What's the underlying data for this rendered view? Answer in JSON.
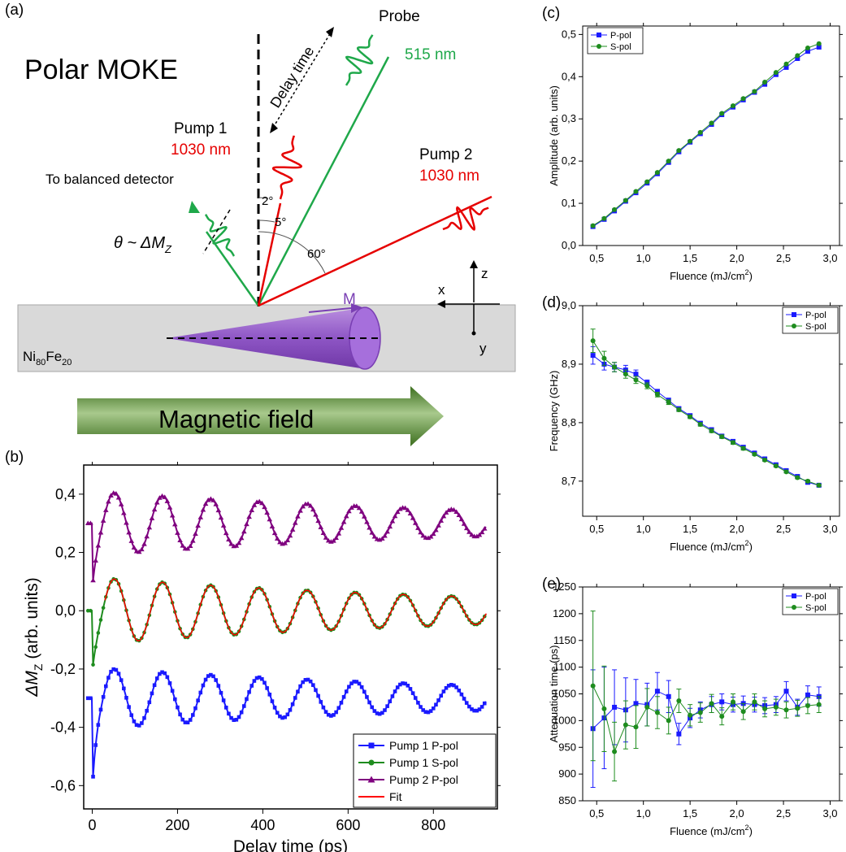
{
  "panel_a": {
    "label": "(a)",
    "title": "Polar MOKE",
    "probe_label": "Probe",
    "probe_wavelength": "515 nm",
    "pump1_label": "Pump 1",
    "pump1_wavelength": "1030 nm",
    "pump2_label": "Pump 2",
    "pump2_wavelength": "1030 nm",
    "delay_label": "Delay time",
    "detector_label": "To balanced detector",
    "theta_label": "θ ~ ΔM",
    "theta_sub": "Z",
    "angle_2": "2°",
    "angle_5": "5°",
    "angle_60": "60°",
    "magnetization_label": "M",
    "axis_z": "z",
    "axis_x": "x",
    "axis_y": "y",
    "sample_main": "Ni",
    "sample_sub1": "80",
    "sample_mid": "Fe",
    "sample_sub2": "20",
    "field_label": "Magnetic field",
    "colors": {
      "probe": "#1fa84a",
      "pump": "#e60000",
      "cone": "#9b59c9",
      "arrow": "#5a8a2e"
    }
  },
  "chart_data": [
    {
      "id": "b",
      "panel_label": "(b)",
      "type": "line",
      "xlabel": "Delay time (ps)",
      "ylabel_main": "ΔM",
      "ylabel_sub": "Z",
      "ylabel_rest": " (arb. units)",
      "xlim": [
        -20,
        950
      ],
      "ylim": [
        -0.68,
        0.5
      ],
      "xticks": [
        "0",
        "200",
        "400",
        "600",
        "800"
      ],
      "xtick_values": [
        0,
        200,
        400,
        600,
        800
      ],
      "yticks": [
        "-0,6",
        "-0,4",
        "-0,2",
        "0,0",
        "0,2",
        "0,4"
      ],
      "ytick_values": [
        -0.6,
        -0.4,
        -0.2,
        0.0,
        0.2,
        0.4
      ],
      "legend_position": "bottom-right",
      "series": [
        {
          "name": "Pump 1 P-pol",
          "color": "#1a1aff",
          "marker": "square",
          "offset": -0.3,
          "amp": 0.105,
          "period": 113,
          "phase": 52,
          "tau": 1020,
          "peak": 0.11
        },
        {
          "name": "Pump 1 S-pol",
          "color": "#1e8c1e",
          "marker": "circle",
          "offset": 0.0,
          "amp": 0.115,
          "period": 113,
          "phase": 52,
          "tau": 1020,
          "peak": 0.0
        },
        {
          "name": "Pump 2 P-pol",
          "color": "#7f007f",
          "marker": "triangle",
          "offset": 0.3,
          "amp": 0.11,
          "period": 113,
          "phase": 52,
          "tau": 1020,
          "peak": -0.06
        },
        {
          "name": "Fit",
          "color": "#ff0000",
          "marker": "line"
        }
      ]
    },
    {
      "id": "c",
      "panel_label": "(c)",
      "type": "line",
      "xlabel": "Fluence (mJ/cm",
      "xlabel_sup": "2",
      "xlabel_end": ")",
      "ylabel": "Amplitude (arb. units)",
      "xlim": [
        0.35,
        3.1
      ],
      "ylim": [
        0.0,
        0.52
      ],
      "xticks": [
        "0,5",
        "1,0",
        "1,5",
        "2,0",
        "2,5",
        "3,0"
      ],
      "xtick_values": [
        0.5,
        1.0,
        1.5,
        2.0,
        2.5,
        3.0
      ],
      "yticks": [
        "0,0",
        "0,1",
        "0,2",
        "0,3",
        "0,4",
        "0,5"
      ],
      "ytick_values": [
        0.0,
        0.1,
        0.2,
        0.3,
        0.4,
        0.5
      ],
      "legend_position": "top-left",
      "x": [
        0.46,
        0.58,
        0.69,
        0.81,
        0.92,
        1.04,
        1.15,
        1.27,
        1.38,
        1.5,
        1.61,
        1.73,
        1.84,
        1.96,
        2.07,
        2.19,
        2.3,
        2.42,
        2.53,
        2.65,
        2.76,
        2.88
      ],
      "series": [
        {
          "name": "P-pol",
          "color": "#1a1aff",
          "marker": "square",
          "values": [
            0.045,
            0.062,
            0.082,
            0.105,
            0.125,
            0.148,
            0.17,
            0.197,
            0.222,
            0.245,
            0.265,
            0.287,
            0.31,
            0.328,
            0.345,
            0.363,
            0.382,
            0.405,
            0.422,
            0.443,
            0.46,
            0.47
          ]
        },
        {
          "name": "S-pol",
          "color": "#1e8c1e",
          "marker": "circle",
          "values": [
            0.047,
            0.064,
            0.085,
            0.107,
            0.128,
            0.151,
            0.173,
            0.2,
            0.225,
            0.247,
            0.268,
            0.29,
            0.313,
            0.331,
            0.348,
            0.365,
            0.387,
            0.41,
            0.43,
            0.45,
            0.468,
            0.478
          ]
        }
      ]
    },
    {
      "id": "d",
      "panel_label": "(d)",
      "type": "line",
      "xlabel": "Fluence (mJ/cm",
      "xlabel_sup": "2",
      "xlabel_end": ")",
      "ylabel": "Frequency (GHz)",
      "xlim": [
        0.35,
        3.1
      ],
      "ylim": [
        8.64,
        9.0
      ],
      "xticks": [
        "0,5",
        "1,0",
        "1,5",
        "2,0",
        "2,5",
        "3,0"
      ],
      "xtick_values": [
        0.5,
        1.0,
        1.5,
        2.0,
        2.5,
        3.0
      ],
      "yticks": [
        "8,7",
        "8,8",
        "8,9",
        "9,0"
      ],
      "ytick_values": [
        8.7,
        8.8,
        8.9,
        9.0
      ],
      "legend_position": "top-right",
      "x": [
        0.46,
        0.58,
        0.69,
        0.81,
        0.92,
        1.04,
        1.15,
        1.27,
        1.38,
        1.5,
        1.61,
        1.73,
        1.84,
        1.96,
        2.07,
        2.19,
        2.3,
        2.42,
        2.53,
        2.65,
        2.76,
        2.88
      ],
      "series": [
        {
          "name": "P-pol",
          "color": "#1a1aff",
          "marker": "square",
          "values": [
            8.915,
            8.9,
            8.895,
            8.89,
            8.883,
            8.868,
            8.853,
            8.838,
            8.824,
            8.812,
            8.799,
            8.788,
            8.777,
            8.768,
            8.758,
            8.748,
            8.738,
            8.728,
            8.718,
            8.708,
            8.698,
            8.693
          ],
          "errors": [
            0.015,
            0.01,
            0.008,
            0.008,
            0.007,
            0.005,
            0.004,
            0.004,
            0.003,
            0.003,
            0.003,
            0.003,
            0.003,
            0.003,
            0.003,
            0.002,
            0.002,
            0.002,
            0.002,
            0.002,
            0.002,
            0.002
          ]
        },
        {
          "name": "S-pol",
          "color": "#1e8c1e",
          "marker": "circle",
          "values": [
            8.94,
            8.91,
            8.895,
            8.883,
            8.873,
            8.863,
            8.848,
            8.835,
            8.822,
            8.81,
            8.797,
            8.786,
            8.776,
            8.766,
            8.756,
            8.746,
            8.736,
            8.726,
            8.716,
            8.706,
            8.7,
            8.693
          ],
          "errors": [
            0.02,
            0.012,
            0.008,
            0.007,
            0.006,
            0.005,
            0.004,
            0.004,
            0.003,
            0.003,
            0.003,
            0.003,
            0.003,
            0.003,
            0.003,
            0.002,
            0.002,
            0.002,
            0.002,
            0.002,
            0.002,
            0.002
          ]
        }
      ]
    },
    {
      "id": "e",
      "panel_label": "(e)",
      "type": "line",
      "xlabel": "Fluence (mJ/cm",
      "xlabel_sup": "2",
      "xlabel_end": ")",
      "ylabel": "Attenuation time (ps)",
      "xlim": [
        0.35,
        3.1
      ],
      "ylim": [
        850,
        1250
      ],
      "xticks": [
        "0,5",
        "1,0",
        "1,5",
        "2,0",
        "2,5",
        "3,0"
      ],
      "xtick_values": [
        0.5,
        1.0,
        1.5,
        2.0,
        2.5,
        3.0
      ],
      "yticks": [
        "850",
        "900",
        "950",
        "1000",
        "1050",
        "1100",
        "1150",
        "1200",
        "1250"
      ],
      "ytick_values": [
        850,
        900,
        950,
        1000,
        1050,
        1100,
        1150,
        1200,
        1250
      ],
      "legend_position": "top-right",
      "x": [
        0.46,
        0.58,
        0.69,
        0.81,
        0.92,
        1.04,
        1.15,
        1.27,
        1.38,
        1.5,
        1.61,
        1.73,
        1.84,
        1.96,
        2.07,
        2.19,
        2.3,
        2.42,
        2.53,
        2.65,
        2.76,
        2.88
      ],
      "series": [
        {
          "name": "P-pol",
          "color": "#1a1aff",
          "marker": "square",
          "values": [
            985,
            1005,
            1025,
            1020,
            1032,
            1030,
            1055,
            1045,
            975,
            1005,
            1020,
            1030,
            1035,
            1030,
            1032,
            1030,
            1028,
            1030,
            1055,
            1025,
            1048,
            1045
          ],
          "errors": [
            110,
            95,
            70,
            60,
            45,
            40,
            35,
            30,
            20,
            18,
            15,
            15,
            15,
            14,
            14,
            14,
            15,
            15,
            18,
            15,
            17,
            18
          ]
        },
        {
          "name": "S-pol",
          "color": "#1e8c1e",
          "marker": "circle",
          "values": [
            1065,
            1022,
            942,
            992,
            988,
            1025,
            1015,
            1000,
            1037,
            1010,
            1015,
            1032,
            1008,
            1035,
            1017,
            1035,
            1022,
            1025,
            1020,
            1023,
            1028,
            1030
          ],
          "errors": [
            140,
            80,
            55,
            45,
            40,
            35,
            30,
            25,
            22,
            20,
            18,
            17,
            16,
            15,
            15,
            15,
            15,
            15,
            15,
            15,
            15,
            15
          ]
        }
      ]
    }
  ]
}
